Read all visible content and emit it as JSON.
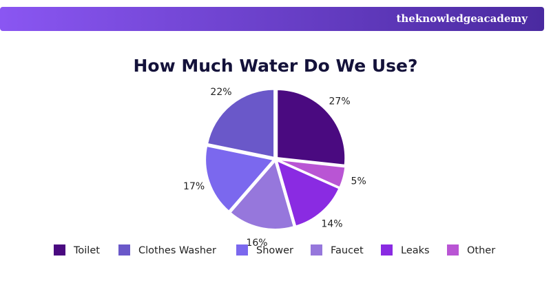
{
  "header": {
    "brand": "theknowledgeacademy"
  },
  "chart_data": {
    "type": "pie",
    "title": "How Much Water Do We Use?",
    "categories": [
      "Toilet",
      "Clothes Washer",
      "Shower",
      "Faucet",
      "Leaks",
      "Other"
    ],
    "values": [
      27,
      22,
      17,
      16,
      14,
      5
    ],
    "value_labels": [
      "27%",
      "22%",
      "17%",
      "16%",
      "14%",
      "5%"
    ],
    "colors": [
      "#4a0a80",
      "#6a58c9",
      "#7b68ee",
      "#9677dc",
      "#8a2be2",
      "#b955d4"
    ],
    "legend": "bottom"
  }
}
